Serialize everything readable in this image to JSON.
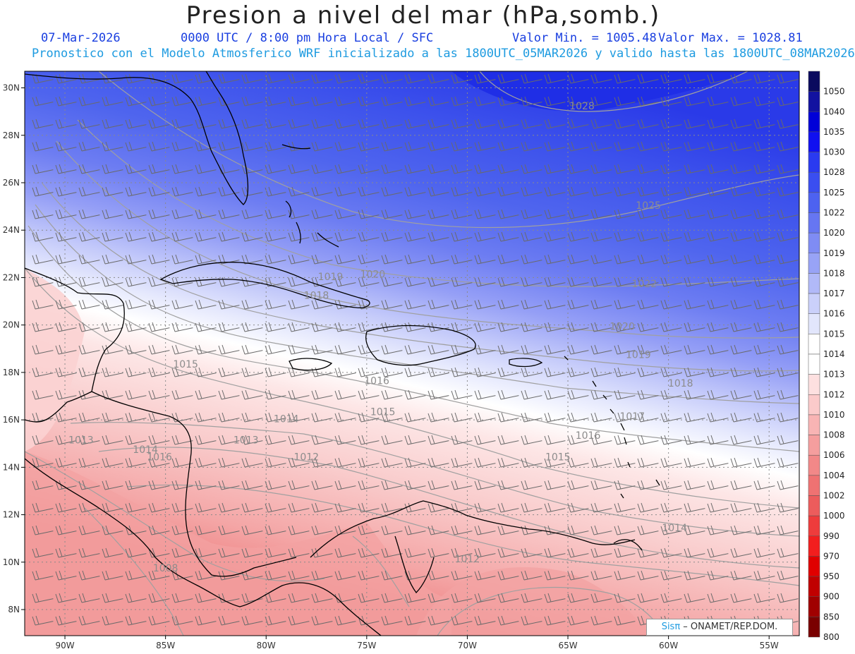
{
  "title": "Presion a nivel del mar (hPa,somb.)",
  "header": {
    "date": "07-Mar-2026",
    "time": "0000 UTC / 8:00 pm Hora Local / SFC",
    "min": "Valor Min. = 1005.48",
    "max": "Valor Max. = 1028.81",
    "subtitle": "Pronostico con el Modelo Atmosferico WRF inicializado a las 1800UTC_05MAR2026 y valido hasta las  1800UTC_08MAR2026"
  },
  "axes": {
    "lon_labels": [
      "90W",
      "85W",
      "80W",
      "75W",
      "70W",
      "65W",
      "60W",
      "55W"
    ],
    "lon_values": [
      -90,
      -85,
      -80,
      -75,
      -70,
      -65,
      -60,
      -55
    ],
    "lat_labels": [
      "30N",
      "28N",
      "26N",
      "24N",
      "22N",
      "20N",
      "18N",
      "16N",
      "14N",
      "12N",
      "10N",
      "8N"
    ],
    "lat_values": [
      30,
      28,
      26,
      24,
      22,
      20,
      18,
      16,
      14,
      12,
      10,
      8
    ],
    "lon_range": [
      -92,
      -53.5
    ],
    "lat_range": [
      6.9,
      30.7
    ]
  },
  "colorbar": {
    "labels": [
      "1050",
      "1040",
      "1035",
      "1030",
      "1028",
      "1025",
      "1022",
      "1020",
      "1019",
      "1018",
      "1017",
      "1016",
      "1015",
      "1014",
      "1013",
      "1012",
      "1010",
      "1008",
      "1006",
      "1004",
      "1002",
      "1000",
      "990",
      "970",
      "950",
      "900",
      "850",
      "800"
    ],
    "colors": [
      "#0a0a5e",
      "#1212a0",
      "#0000d8",
      "#1010f0",
      "#2a3af0",
      "#3a4ef0",
      "#4d62f0",
      "#6676f2",
      "#7f8cf4",
      "#98a3f6",
      "#b1b9f8",
      "#cad0fa",
      "#e2e6fc",
      "#ffffff",
      "#ffffff",
      "#fde0e0",
      "#fbcaca",
      "#f8b4b4",
      "#f59e9e",
      "#f28888",
      "#ef7272",
      "#ec5c5c",
      "#ee3c3c",
      "#f21e1e",
      "#e00000",
      "#c00000",
      "#a00000",
      "#7a0000"
    ]
  },
  "contour_labels": [
    {
      "text": "1028",
      "lon": -64.3,
      "lat": 29.1
    },
    {
      "text": "1025",
      "lon": -61.0,
      "lat": 24.9
    },
    {
      "text": "1022",
      "lon": -61.2,
      "lat": 21.6
    },
    {
      "text": "1020",
      "lon": -74.7,
      "lat": 22.0
    },
    {
      "text": "1020",
      "lon": -62.3,
      "lat": 19.8
    },
    {
      "text": "1019",
      "lon": -76.8,
      "lat": 21.9
    },
    {
      "text": "1018",
      "lon": -77.5,
      "lat": 21.1
    },
    {
      "text": "1019",
      "lon": -61.5,
      "lat": 18.6
    },
    {
      "text": "1018",
      "lon": -59.4,
      "lat": 17.4
    },
    {
      "text": "1017",
      "lon": -61.8,
      "lat": 16.0
    },
    {
      "text": "1016",
      "lon": -64.0,
      "lat": 15.2
    },
    {
      "text": "1016",
      "lon": -74.5,
      "lat": 17.5
    },
    {
      "text": "1015",
      "lon": -84.0,
      "lat": 18.2
    },
    {
      "text": "1015",
      "lon": -74.2,
      "lat": 16.2
    },
    {
      "text": "1015",
      "lon": -65.5,
      "lat": 14.3
    },
    {
      "text": "1014",
      "lon": -79.0,
      "lat": 15.9
    },
    {
      "text": "1014",
      "lon": -59.7,
      "lat": 11.3
    },
    {
      "text": "1013",
      "lon": -81.0,
      "lat": 15.0
    },
    {
      "text": "1013",
      "lon": -89.2,
      "lat": 15.0
    },
    {
      "text": "1014",
      "lon": -86.0,
      "lat": 14.6
    },
    {
      "text": "1016",
      "lon": -85.3,
      "lat": 14.3
    },
    {
      "text": "1012",
      "lon": -78.0,
      "lat": 14.3
    },
    {
      "text": "1012",
      "lon": -70.0,
      "lat": 10.0
    },
    {
      "text": "1008",
      "lon": -85.0,
      "lat": 9.6
    }
  ],
  "credit": {
    "sis": "Sisπ",
    "rest": " – ONAMET/REP.DOM."
  },
  "colors": {
    "land": "#000000",
    "contour": "#9a9a9a",
    "grid": "#8a8a8a",
    "barb": "#666666"
  }
}
